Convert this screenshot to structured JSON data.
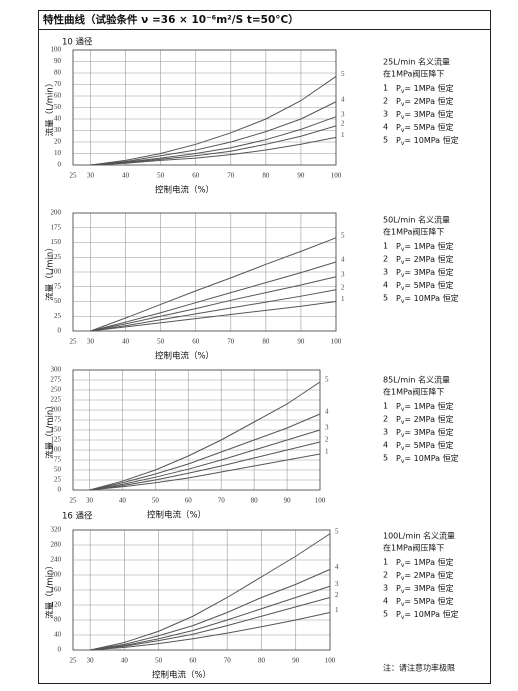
{
  "title": "特性曲线（试验条件 ν =36 × 10⁻⁶m²/S  t=50°C）",
  "footnote": "注：请注意功率极限",
  "chart_data": [
    {
      "type": "line",
      "subtitle": "10 通径",
      "x_label": "控制电流（%）",
      "y_label": "流量（L/min）",
      "xlim": [
        25,
        100
      ],
      "xticks": [
        25,
        30,
        40,
        50,
        60,
        70,
        80,
        90,
        100
      ],
      "ylim": [
        0,
        100
      ],
      "yticks": [
        0,
        10,
        20,
        30,
        40,
        50,
        60,
        70,
        80,
        90,
        100
      ],
      "grid": true,
      "x": [
        30,
        40,
        50,
        60,
        70,
        80,
        90,
        100
      ],
      "series": [
        {
          "name": "1",
          "color": "#555555",
          "values": [
            0,
            1.5,
            4,
            6,
            9,
            13,
            18,
            24
          ]
        },
        {
          "name": "2",
          "color": "#555555",
          "values": [
            0,
            2,
            5,
            8,
            12,
            18,
            25,
            34
          ]
        },
        {
          "name": "3",
          "color": "#555555",
          "values": [
            0,
            2.5,
            6,
            10,
            15,
            22,
            31,
            42
          ]
        },
        {
          "name": "4",
          "color": "#555555",
          "values": [
            0,
            3,
            8,
            13,
            20,
            29,
            40,
            55
          ]
        },
        {
          "name": "5",
          "color": "#555555",
          "values": [
            0,
            4,
            10,
            18,
            28,
            40,
            56,
            77
          ]
        }
      ],
      "notes": {
        "flow": "25L/min 名义流量",
        "cond": "在1MPa阀压降下",
        "items": [
          [
            "1",
            "P",
            "v",
            "= 1MPa 恒定"
          ],
          [
            "2",
            "P",
            "v",
            "= 2MPa 恒定"
          ],
          [
            "3",
            "P",
            "v",
            "= 3MPa 恒定"
          ],
          [
            "4",
            "P",
            "v",
            "= 5MPa 恒定"
          ],
          [
            "5",
            "P",
            "v",
            "= 10MPa 恒定"
          ]
        ]
      }
    },
    {
      "type": "line",
      "x_label": "控制电流（%）",
      "y_label": "流量（L/min）",
      "xlim": [
        25,
        100
      ],
      "xticks": [
        25,
        30,
        40,
        50,
        60,
        70,
        80,
        90,
        100
      ],
      "ylim": [
        0,
        200
      ],
      "yticks": [
        0,
        25,
        50,
        75,
        100,
        125,
        150,
        175,
        200
      ],
      "grid": true,
      "x": [
        30,
        40,
        50,
        60,
        70,
        80,
        90,
        100
      ],
      "series": [
        {
          "name": "1",
          "color": "#555555",
          "values": [
            0,
            7,
            14,
            21,
            28,
            35,
            42,
            50
          ]
        },
        {
          "name": "2",
          "color": "#555555",
          "values": [
            0,
            9,
            19,
            29,
            39,
            49,
            59,
            70
          ]
        },
        {
          "name": "3",
          "color": "#555555",
          "values": [
            0,
            12,
            25,
            38,
            52,
            65,
            78,
            92
          ]
        },
        {
          "name": "4",
          "color": "#555555",
          "values": [
            0,
            15,
            31,
            48,
            65,
            82,
            99,
            117
          ]
        },
        {
          "name": "5",
          "color": "#555555",
          "values": [
            0,
            22,
            45,
            68,
            90,
            113,
            135,
            158
          ]
        }
      ],
      "notes": {
        "flow": "50L/min 名义流量",
        "cond": "在1MPa阀压降下",
        "items": [
          [
            "1",
            "P",
            "v",
            "= 1MPa 恒定"
          ],
          [
            "2",
            "P",
            "v",
            "= 2MPa 恒定"
          ],
          [
            "3",
            "P",
            "v",
            "= 3MPa 恒定"
          ],
          [
            "4",
            "P",
            "v",
            "= 5MPa 恒定"
          ],
          [
            "5",
            "P",
            "v",
            "= 10MPa 恒定"
          ]
        ]
      }
    },
    {
      "type": "line",
      "x_label": "控制电流（%）",
      "y_label": "流量（L/min）",
      "xlim": [
        25,
        100
      ],
      "xticks": [
        25,
        30,
        40,
        50,
        60,
        70,
        80,
        90,
        100
      ],
      "ylim": [
        0,
        300
      ],
      "yticks": [
        0,
        25,
        50,
        75,
        100,
        125,
        150,
        175,
        200,
        225,
        250,
        275,
        300
      ],
      "grid": true,
      "x": [
        30,
        40,
        50,
        60,
        70,
        80,
        90,
        100
      ],
      "series": [
        {
          "name": "1",
          "color": "#555555",
          "values": [
            0,
            8,
            18,
            30,
            45,
            60,
            75,
            90
          ]
        },
        {
          "name": "2",
          "color": "#555555",
          "values": [
            0,
            11,
            25,
            42,
            60,
            80,
            100,
            120
          ]
        },
        {
          "name": "3",
          "color": "#555555",
          "values": [
            0,
            14,
            32,
            52,
            75,
            100,
            125,
            150
          ]
        },
        {
          "name": "4",
          "color": "#555555",
          "values": [
            0,
            18,
            40,
            65,
            95,
            125,
            155,
            190
          ]
        },
        {
          "name": "5",
          "color": "#555555",
          "values": [
            0,
            22,
            50,
            85,
            125,
            170,
            215,
            270
          ]
        }
      ],
      "notes": {
        "flow": "85L/min 名义流量",
        "cond": "在1MPa阀压降下",
        "items": [
          [
            "1",
            "P",
            "v",
            "= 1MPa 恒定"
          ],
          [
            "2",
            "P",
            "v",
            "= 2MPa 恒定"
          ],
          [
            "3",
            "P",
            "v",
            "= 3MPa 恒定"
          ],
          [
            "4",
            "P",
            "v",
            "= 5MPa 恒定"
          ],
          [
            "5",
            "P",
            "v",
            "= 10MPa 恒定"
          ]
        ]
      }
    },
    {
      "type": "line",
      "subtitle": "16 通径",
      "x_label": "控制电流（%）",
      "y_label": "流量（L/min）",
      "xlim": [
        25,
        100
      ],
      "xticks": [
        25,
        30,
        40,
        50,
        60,
        70,
        80,
        90,
        100
      ],
      "ylim": [
        0,
        320
      ],
      "yticks": [
        0,
        40,
        80,
        120,
        160,
        200,
        240,
        280,
        320
      ],
      "grid": true,
      "x": [
        30,
        40,
        50,
        60,
        70,
        80,
        90,
        100
      ],
      "series": [
        {
          "name": "1",
          "color": "#555555",
          "values": [
            0,
            7,
            17,
            30,
            45,
            62,
            80,
            100
          ]
        },
        {
          "name": "2",
          "color": "#555555",
          "values": [
            0,
            10,
            25,
            42,
            65,
            90,
            115,
            140
          ]
        },
        {
          "name": "3",
          "color": "#555555",
          "values": [
            0,
            12,
            30,
            52,
            80,
            110,
            140,
            170
          ]
        },
        {
          "name": "4",
          "color": "#555555",
          "values": [
            0,
            15,
            38,
            65,
            100,
            140,
            175,
            215
          ]
        },
        {
          "name": "5",
          "color": "#555555",
          "values": [
            0,
            20,
            50,
            90,
            140,
            195,
            250,
            310
          ]
        }
      ],
      "notes": {
        "flow": "100L/min 名义流量",
        "cond": "在1MPa阀压降下",
        "items": [
          [
            "1",
            "P",
            "v",
            "= 1MPa 恒定"
          ],
          [
            "2",
            "P",
            "v",
            "= 2MPa 恒定"
          ],
          [
            "3",
            "P",
            "v",
            "= 3MPa 恒定"
          ],
          [
            "4",
            "P",
            "v",
            "= 5MPa 恒定"
          ],
          [
            "5",
            "P",
            "v",
            "= 10MPa 恒定"
          ]
        ]
      }
    }
  ]
}
